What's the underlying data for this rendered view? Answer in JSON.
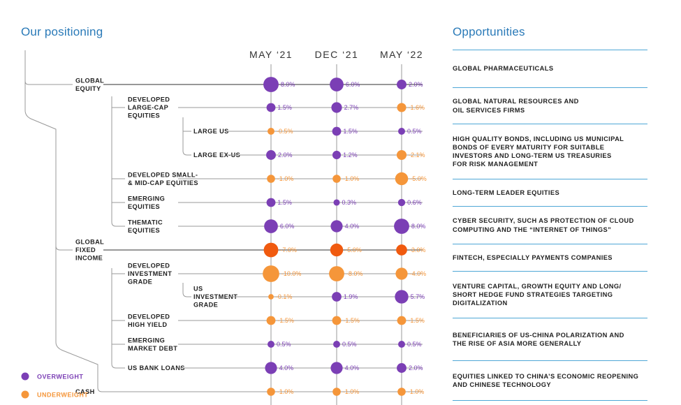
{
  "left_title": "Our positioning",
  "right_title": "Opportunities",
  "colors": {
    "overweight": "#7b3fb5",
    "underweight": "#f5963a",
    "underweight_fixed_income": "#f05a0f",
    "connector": "#999999",
    "divider": "#4ea7d6",
    "title": "#2a7ab8"
  },
  "legend": [
    {
      "label": "OVERWEIGHT",
      "color": "#7b3fb5"
    },
    {
      "label": "UNDERWEIGHT",
      "color": "#f5963a"
    }
  ],
  "chart_data": {
    "type": "bubble-table",
    "columns": [
      "MAY ‘21",
      "DEC ‘21",
      "MAY ‘22"
    ],
    "rows": [
      {
        "label": [
          "GLOBAL",
          "EQUITY"
        ],
        "level": 0,
        "values": [
          8.0,
          6.0,
          2.0
        ],
        "display": [
          "8.0%",
          "6.0%",
          "2.0%"
        ]
      },
      {
        "label": [
          "DEVELOPED",
          "LARGE-CAP",
          "EQUITIES"
        ],
        "level": 1,
        "values": [
          1.5,
          2.7,
          -1.6
        ],
        "display": [
          "1.5%",
          "2.7%",
          "-1.6%"
        ]
      },
      {
        "label": [
          "LARGE US"
        ],
        "level": 2,
        "values": [
          -0.5,
          1.5,
          0.5
        ],
        "display": [
          "-0.5%",
          "1.5%",
          "0.5%"
        ]
      },
      {
        "label": [
          "LARGE EX-US"
        ],
        "level": 2,
        "values": [
          2.0,
          1.2,
          -2.1
        ],
        "display": [
          "2.0%",
          "1.2%",
          "-2.1%"
        ]
      },
      {
        "label": [
          "DEVELOPED SMALL-",
          "& MID-CAP EQUITIES"
        ],
        "level": 1,
        "values": [
          -1.0,
          -1.0,
          -5.0
        ],
        "display": [
          "-1.0%",
          "-1.0%",
          "-5.0%"
        ]
      },
      {
        "label": [
          "EMERGING",
          "EQUITIES"
        ],
        "level": 1,
        "values": [
          1.5,
          0.3,
          0.6
        ],
        "display": [
          "1.5%",
          "0.3%",
          "0.6%"
        ]
      },
      {
        "label": [
          "THEMATIC",
          "EQUITIES"
        ],
        "level": 1,
        "values": [
          6.0,
          4.0,
          8.0
        ],
        "display": [
          "6.0%",
          "4.0%",
          "8.0%"
        ]
      },
      {
        "label": [
          "GLOBAL",
          "FIXED",
          "INCOME"
        ],
        "level": 0,
        "values": [
          -7.0,
          -5.0,
          -3.0
        ],
        "display": [
          "-7.0%",
          "-5.0%",
          "-3.0%"
        ],
        "color_key": "underweight_fixed_income"
      },
      {
        "label": [
          "DEVELOPED",
          "INVESTMENT",
          "GRADE"
        ],
        "level": 1,
        "values": [
          -10.0,
          -8.0,
          -4.0
        ],
        "display": [
          "-10.0%",
          "-8.0%",
          "-4.0%"
        ]
      },
      {
        "label": [
          "US",
          "INVESTMENT",
          "GRADE"
        ],
        "level": 2,
        "values": [
          -0.1,
          1.9,
          5.7
        ],
        "display": [
          "-0.1%",
          "1.9%",
          "5.7%"
        ]
      },
      {
        "label": [
          "DEVELOPED",
          "HIGH YIELD"
        ],
        "level": 1,
        "values": [
          -1.5,
          -1.5,
          -1.5
        ],
        "display": [
          "-1.5%",
          "-1.5%",
          "-1.5%"
        ]
      },
      {
        "label": [
          "EMERGING",
          "MARKET DEBT"
        ],
        "level": 1,
        "values": [
          0.5,
          0.5,
          0.5
        ],
        "display": [
          "0.5%",
          "0.5%",
          "0.5%"
        ]
      },
      {
        "label": [
          "US BANK LOANS"
        ],
        "level": 1,
        "values": [
          4.0,
          4.0,
          2.0
        ],
        "display": [
          "4.0%",
          "4.0%",
          "2.0%"
        ]
      },
      {
        "label": [
          "CASH"
        ],
        "level": 0,
        "values": [
          -1.0,
          -1.0,
          -1.0
        ],
        "display": [
          "-1.0%",
          "-1.0%",
          "-1.0%"
        ]
      }
    ]
  },
  "opportunities": [
    [
      "GLOBAL PHARMACEUTICALS"
    ],
    [
      "GLOBAL NATURAL RESOURCES AND",
      "OIL SERVICES FIRMS"
    ],
    [
      "HIGH QUALITY BONDS, INCLUDING US MUNICIPAL",
      "BONDS OF EVERY MATURITY FOR SUITABLE",
      "INVESTORS AND LONG-TERM US TREASURIES",
      "FOR RISK MANAGEMENT"
    ],
    [
      "LONG-TERM LEADER EQUITIES"
    ],
    [
      "CYBER SECURITY, SUCH AS PROTECTION OF CLOUD",
      "COMPUTING AND THE “INTERNET OF THINGS”"
    ],
    [
      "FINTECH, ESPECIALLY PAYMENTS COMPANIES"
    ],
    [
      "VENTURE CAPITAL, GROWTH EQUITY AND LONG/",
      "SHORT HEDGE FUND STRATEGIES TARGETING",
      "DIGITALIZATION"
    ],
    [
      "BENEFICIARIES OF US-CHINA POLARIZATION AND",
      "THE RISE OF ASIA MORE GENERALLY"
    ],
    [
      "EQUITIES LINKED TO CHINA’S ECONOMIC REOPENING",
      "AND CHINESE TECHNOLOGY"
    ]
  ]
}
